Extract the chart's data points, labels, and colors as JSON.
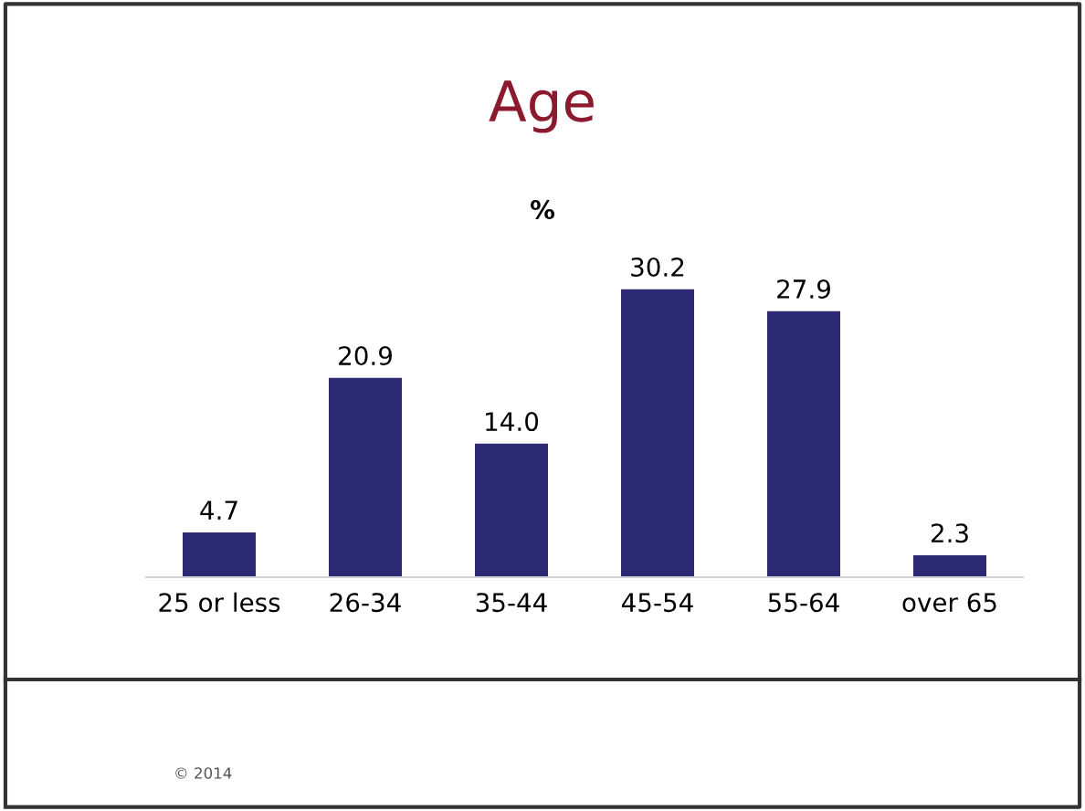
{
  "chart_data": {
    "type": "bar",
    "title": "Age",
    "subtitle": "%",
    "categories": [
      "25 or less",
      "26-34",
      "35-44",
      "45-54",
      "55-64",
      "over 65"
    ],
    "values": [
      4.7,
      20.9,
      14.0,
      30.2,
      27.9,
      2.3
    ],
    "value_labels": [
      "4.7",
      "20.9",
      "14.0",
      "30.2",
      "27.9",
      "2.3"
    ],
    "color": "#2b2a73",
    "grid": false,
    "legend": false,
    "annotations": [
      "© 2014"
    ]
  }
}
